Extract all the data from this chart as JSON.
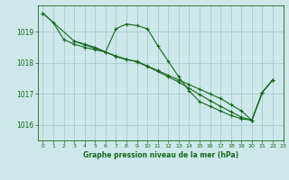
{
  "title": "Graphe pression niveau de la mer (hPa)",
  "background_color": "#cce8e8",
  "grid_color": "#aacccc",
  "line_color": "#1a6620",
  "xlim": [
    -0.5,
    23
  ],
  "ylim": [
    1015.5,
    1019.85
  ],
  "yticks": [
    1016,
    1017,
    1018,
    1019
  ],
  "xticks": [
    0,
    1,
    2,
    3,
    4,
    5,
    6,
    7,
    8,
    9,
    10,
    11,
    12,
    13,
    14,
    15,
    16,
    17,
    18,
    19,
    20,
    21,
    22,
    23
  ],
  "series": [
    {
      "x": [
        0,
        1,
        2,
        3,
        4,
        5,
        6,
        7,
        8,
        9,
        10,
        11,
        12,
        13,
        14,
        15,
        16,
        17,
        18,
        19,
        20,
        21,
        22
      ],
      "y": [
        1019.6,
        1019.3,
        1018.75,
        1018.6,
        1018.5,
        1018.42,
        1018.35,
        1018.2,
        1018.1,
        1018.05,
        1017.9,
        1017.75,
        1017.6,
        1017.45,
        1017.3,
        1017.15,
        1017.0,
        1016.85,
        1016.65,
        1016.45,
        1016.15,
        1017.05,
        1017.45
      ]
    },
    {
      "x": [
        0,
        3,
        4,
        5,
        6,
        7,
        8,
        9,
        10,
        11,
        12,
        13,
        14,
        15,
        16,
        17,
        18,
        19,
        20,
        21,
        22
      ],
      "y": [
        1019.6,
        1018.7,
        1018.6,
        1018.5,
        1018.35,
        1019.1,
        1019.25,
        1019.2,
        1019.1,
        1018.55,
        1018.05,
        1017.55,
        1017.1,
        1016.75,
        1016.6,
        1016.45,
        1016.3,
        1016.2,
        1016.15,
        1017.05,
        1017.45
      ]
    },
    {
      "x": [
        3,
        4,
        5,
        6,
        7,
        8,
        9,
        10,
        11,
        12,
        13,
        14,
        15,
        16,
        17,
        18,
        19,
        20,
        21,
        22
      ],
      "y": [
        1018.7,
        1018.58,
        1018.47,
        1018.35,
        1018.22,
        1018.12,
        1018.03,
        1017.88,
        1017.72,
        1017.55,
        1017.38,
        1017.18,
        1016.98,
        1016.78,
        1016.6,
        1016.42,
        1016.25,
        1016.15,
        1017.05,
        1017.45
      ]
    }
  ]
}
